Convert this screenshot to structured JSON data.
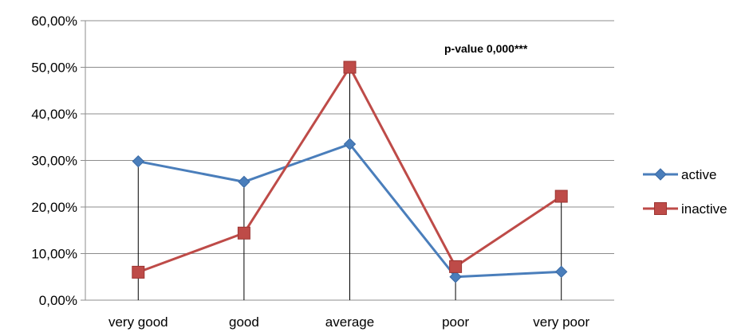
{
  "chart_data": {
    "type": "line",
    "categories": [
      "very good",
      "good",
      "average",
      "poor",
      "very poor"
    ],
    "series": [
      {
        "name": "active",
        "values": [
          29.8,
          25.4,
          33.5,
          5.0,
          6.1
        ],
        "color": "#4a7ebb",
        "marker": "diamond"
      },
      {
        "name": "inactive",
        "values": [
          6.0,
          14.4,
          50.0,
          7.2,
          22.3
        ],
        "color": "#be4b48",
        "marker": "square"
      }
    ],
    "ylim": [
      0,
      60
    ],
    "yticks": [
      0,
      10,
      20,
      30,
      40,
      50,
      60
    ],
    "ytick_labels": [
      "0,00%",
      "10,00%",
      "20,00%",
      "30,00%",
      "40,00%",
      "50,00%",
      "60,00%"
    ],
    "grid": true,
    "drop_lines": true,
    "legend_position": "right",
    "annotation": "p-value 0,000***",
    "title": "",
    "xlabel": "",
    "ylabel": ""
  }
}
